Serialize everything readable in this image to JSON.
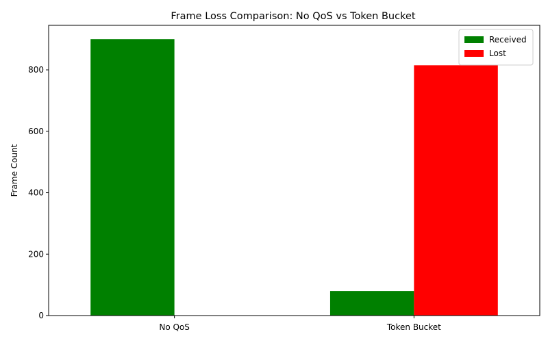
{
  "chart_data": {
    "type": "bar",
    "title": "Frame Loss Comparison: No QoS vs Token Bucket",
    "xlabel": "",
    "ylabel": "Frame Count",
    "categories": [
      "No QoS",
      "Token Bucket"
    ],
    "series": [
      {
        "name": "Received",
        "color": "#008000",
        "values": [
          900,
          80
        ]
      },
      {
        "name": "Lost",
        "color": "#ff0000",
        "values": [
          0,
          815
        ]
      }
    ],
    "ylim": [
      0,
      945
    ],
    "yticks": [
      0,
      200,
      400,
      600,
      800
    ],
    "grid": false,
    "legend_position": "top-right"
  }
}
